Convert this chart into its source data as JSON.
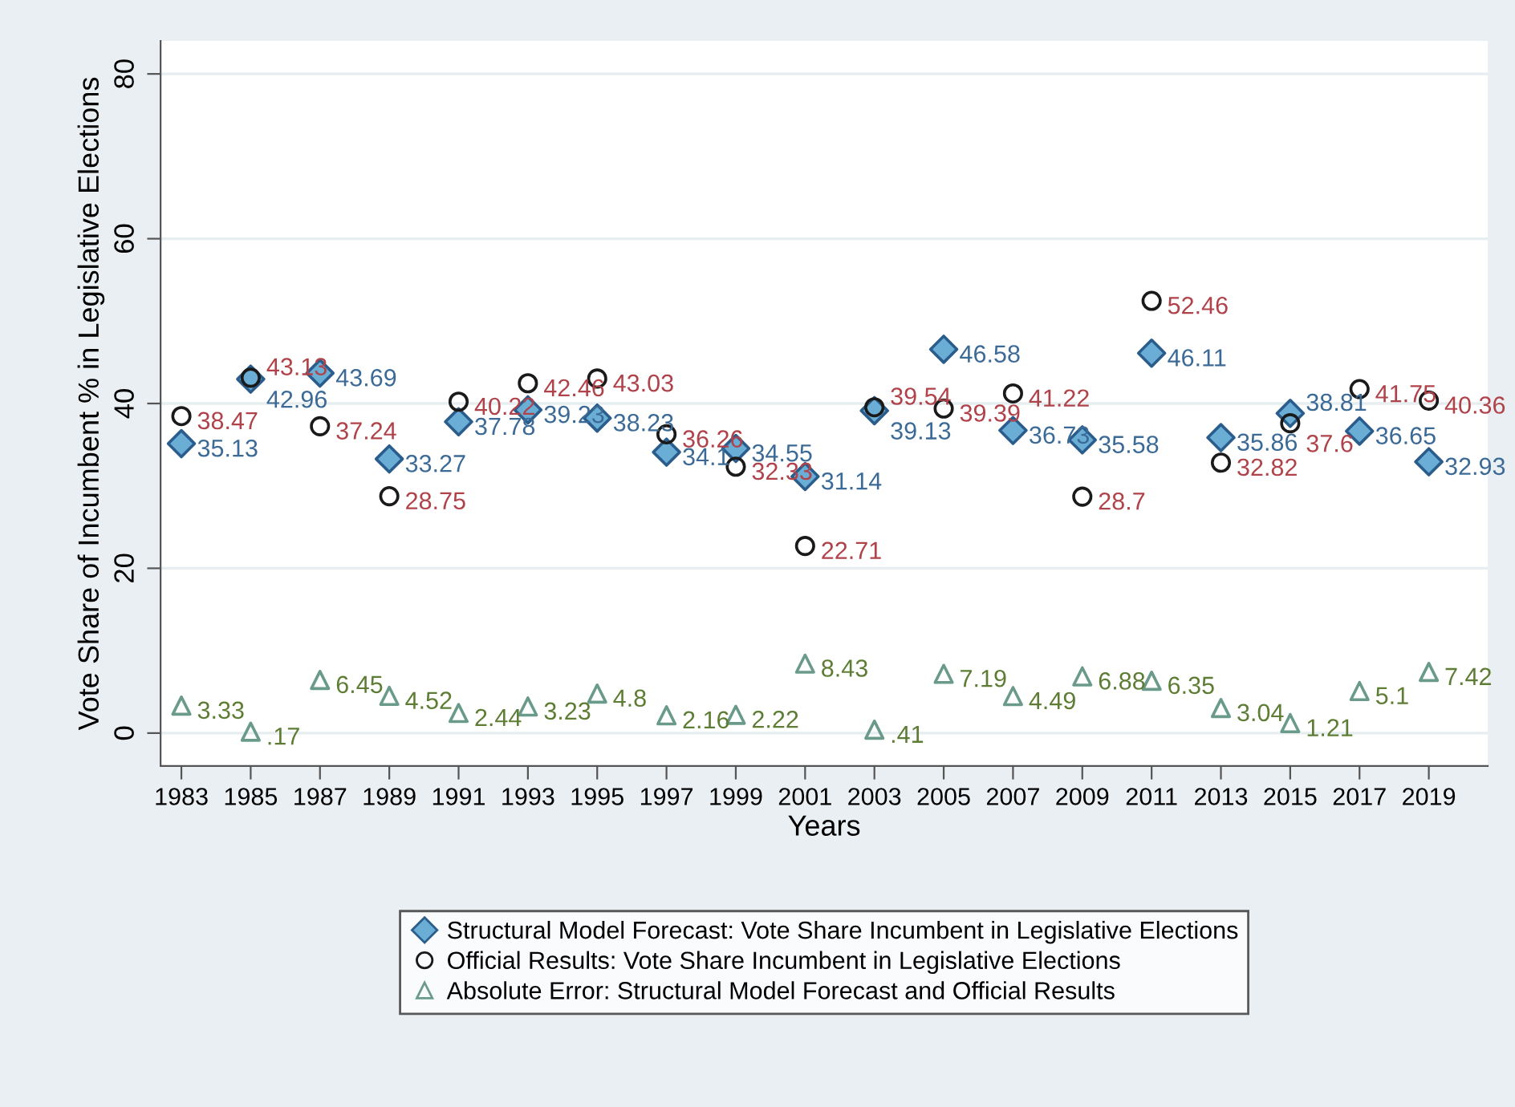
{
  "chart_data": {
    "type": "scatter",
    "xlabel": "Years",
    "ylabel": "Vote Share of Incumbent % in Legislative Elections",
    "x": [
      1983,
      1985,
      1987,
      1989,
      1991,
      1993,
      1995,
      1997,
      1999,
      2001,
      2003,
      2005,
      2007,
      2009,
      2011,
      2013,
      2015,
      2017,
      2019
    ],
    "xlim": [
      1982.4,
      2020.7
    ],
    "ylim": [
      -4,
      84
    ],
    "yticks": [
      0,
      20,
      40,
      60,
      80
    ],
    "xticks": [
      1983,
      1985,
      1987,
      1989,
      1991,
      1993,
      1995,
      1997,
      1999,
      2001,
      2003,
      2005,
      2007,
      2009,
      2011,
      2013,
      2015,
      2017,
      2019
    ],
    "grid": "y",
    "legend": "bottom",
    "series": [
      {
        "name": "Structural Model Forecast: Vote Share Incumbent in Legislative Elections",
        "color": "#6aaed6",
        "marker": "diamond",
        "values": [
          35.13,
          42.96,
          43.69,
          33.27,
          37.78,
          39.23,
          38.23,
          34.1,
          34.55,
          31.14,
          39.13,
          46.58,
          36.73,
          35.58,
          46.11,
          35.86,
          38.81,
          36.65,
          32.93
        ],
        "value_labels": [
          "35.13",
          "42.96",
          "43.69",
          "33.27",
          "37.78",
          "39.23",
          "38.23",
          "34.1",
          "34.55",
          "31.14",
          "39.13",
          "46.58",
          "36.73",
          "35.58",
          "46.11",
          "35.86",
          "38.81",
          "36.65",
          "32.93"
        ]
      },
      {
        "name": "Official Results: Vote Share Incumbent in Legislative Elections",
        "color": "#1a1a1a",
        "marker": "circle",
        "values": [
          38.47,
          43.13,
          37.24,
          28.75,
          40.22,
          42.46,
          43.03,
          36.26,
          32.33,
          22.71,
          39.54,
          39.39,
          41.22,
          28.7,
          52.46,
          32.82,
          37.6,
          41.75,
          40.36
        ],
        "value_labels": [
          "38.47",
          "43.13",
          "37.24",
          "28.75",
          "40.22",
          "42.46",
          "43.03",
          "36.26",
          "32.33",
          "22.71",
          "39.54",
          "39.39",
          "41.22",
          "28.7",
          "52.46",
          "32.82",
          "37.6",
          "41.75",
          "40.36"
        ]
      },
      {
        "name": "Absolute Error: Structural Model Forecast and Official Results",
        "color": "#6a9a8a",
        "marker": "triangle",
        "values": [
          3.33,
          0.17,
          6.45,
          4.52,
          2.44,
          3.23,
          4.8,
          2.16,
          2.22,
          8.43,
          0.41,
          7.19,
          4.49,
          6.88,
          6.35,
          3.04,
          1.21,
          5.1,
          7.42
        ],
        "value_labels": [
          "3.33",
          ".17",
          "6.45",
          "4.52",
          "2.44",
          "3.23",
          "4.8",
          "2.16",
          "2.22",
          "8.43",
          ".41",
          "7.19",
          "4.49",
          "6.88",
          "6.35",
          "3.04",
          "1.21",
          "5.1",
          "7.42"
        ]
      }
    ]
  }
}
